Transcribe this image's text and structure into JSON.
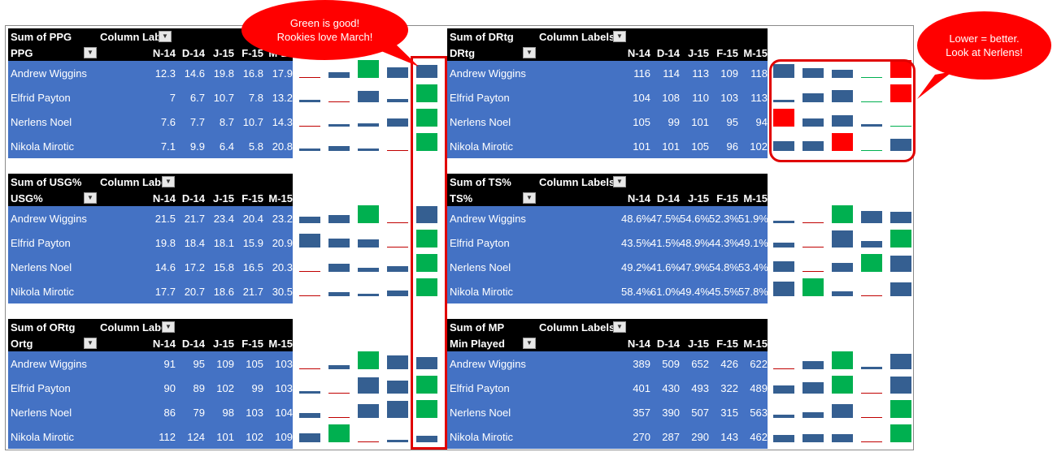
{
  "months": [
    "N-14",
    "D-14",
    "J-15",
    "F-15",
    "M-15"
  ],
  "col_labels_text": "Column Labels",
  "col_labels_text_short": "Column Labe",
  "players": [
    "Andrew Wiggins",
    "Elfrid Payton",
    "Nerlens Noel",
    "Nikola Mirotic"
  ],
  "pivots": {
    "ppg": {
      "title": "Sum of PPG",
      "row_field": "PPG",
      "values": [
        [
          "12.3",
          "14.6",
          "19.8",
          "16.8",
          "17.9"
        ],
        [
          "7",
          "6.7",
          "10.7",
          "7.8",
          "13.2"
        ],
        [
          "7.6",
          "7.7",
          "8.7",
          "10.7",
          "14.3"
        ],
        [
          "7.1",
          "9.9",
          "6.4",
          "5.8",
          "20.8"
        ]
      ]
    },
    "usg": {
      "title": "Sum of USG%",
      "row_field": "USG%",
      "values": [
        [
          "21.5",
          "21.7",
          "23.4",
          "20.4",
          "23.2"
        ],
        [
          "19.8",
          "18.4",
          "18.1",
          "15.9",
          "20.9"
        ],
        [
          "14.6",
          "17.2",
          "15.8",
          "16.5",
          "20.3"
        ],
        [
          "17.7",
          "20.7",
          "18.6",
          "21.7",
          "30.5"
        ]
      ]
    },
    "ortg": {
      "title": "Sum of ORtg",
      "row_field": "Ortg",
      "values": [
        [
          "91",
          "95",
          "109",
          "105",
          "103"
        ],
        [
          "90",
          "89",
          "102",
          "99",
          "103"
        ],
        [
          "86",
          "79",
          "98",
          "103",
          "104"
        ],
        [
          "112",
          "124",
          "101",
          "102",
          "109"
        ]
      ]
    },
    "drtg": {
      "title": "Sum of DRtg",
      "row_field": "DRtg",
      "values": [
        [
          "116",
          "114",
          "113",
          "109",
          "118"
        ],
        [
          "104",
          "108",
          "110",
          "103",
          "113"
        ],
        [
          "105",
          "99",
          "101",
          "95",
          "94"
        ],
        [
          "101",
          "101",
          "105",
          "96",
          "102"
        ]
      ]
    },
    "ts": {
      "title": "Sum of TS%",
      "row_field": "TS%",
      "values": [
        [
          "48.6%",
          "47.5%",
          "54.6%",
          "52.3%",
          "51.9%"
        ],
        [
          "43.5%",
          "41.5%",
          "48.9%",
          "44.3%",
          "49.1%"
        ],
        [
          "49.2%",
          "41.6%",
          "47.9%",
          "54.8%",
          "53.4%"
        ],
        [
          "58.4%",
          "61.0%",
          "49.4%",
          "45.5%",
          "57.8%"
        ]
      ]
    },
    "mp": {
      "title": "Sum of MP",
      "row_field": "Min Played",
      "values": [
        [
          "389",
          "509",
          "652",
          "426",
          "622"
        ],
        [
          "401",
          "430",
          "493",
          "322",
          "489"
        ],
        [
          "357",
          "390",
          "507",
          "315",
          "563"
        ],
        [
          "270",
          "287",
          "290",
          "143",
          "462"
        ]
      ]
    }
  },
  "callouts": {
    "green": {
      "line1": "Green is good!",
      "line2": "Rookies love March!"
    },
    "lower": {
      "line1": "Lower = better.",
      "line2": "Look at Nerlens!"
    }
  },
  "colors": {
    "header": "#000000",
    "data": "#4472c4",
    "bar": "#355f91",
    "best": "#00b050",
    "worst": "#ff0000",
    "line": "#c00000"
  }
}
